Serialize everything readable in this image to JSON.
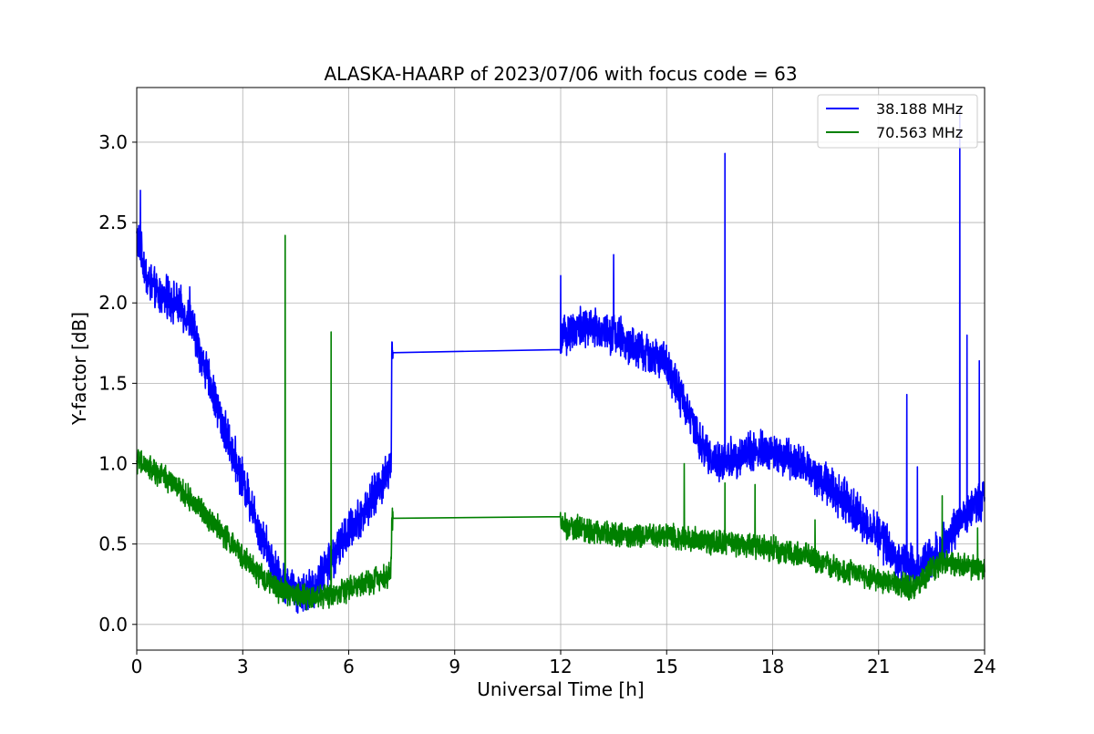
{
  "chart_data": {
    "type": "line",
    "title": "ALASKA-HAARP of 2023/07/06 with focus code = 63",
    "xlabel": "Universal Time [h]",
    "ylabel": "Y-factor [dB]",
    "xlim": [
      0,
      24
    ],
    "ylim": [
      -0.16,
      3.34
    ],
    "xticks": [
      0,
      3,
      6,
      9,
      12,
      15,
      18,
      21,
      24
    ],
    "xtick_labels": [
      "0",
      "3",
      "6",
      "9",
      "12",
      "15",
      "18",
      "21",
      "24"
    ],
    "yticks": [
      0.0,
      0.5,
      1.0,
      1.5,
      2.0,
      2.5,
      3.0
    ],
    "ytick_labels": [
      "0.0",
      "0.5",
      "1.0",
      "1.5",
      "2.0",
      "2.5",
      "3.0"
    ],
    "grid": true,
    "legend_position": "top-right",
    "series": [
      {
        "name": "38.188 MHz",
        "color": "#0000ff",
        "x": [
          0.0,
          0.3,
          0.6,
          1.0,
          1.5,
          2.0,
          2.5,
          3.0,
          3.5,
          4.0,
          4.5,
          5.0,
          5.5,
          6.0,
          6.5,
          7.0,
          7.2,
          7.22,
          12.0,
          12.01,
          12.5,
          13.0,
          13.5,
          14.0,
          14.5,
          15.0,
          15.5,
          16.0,
          16.5,
          17.0,
          17.5,
          18.0,
          18.5,
          19.0,
          19.5,
          20.0,
          20.5,
          21.0,
          21.5,
          22.0,
          22.5,
          23.0,
          23.5,
          24.0
        ],
        "y": [
          2.42,
          2.15,
          2.05,
          2.02,
          1.9,
          1.55,
          1.2,
          0.9,
          0.58,
          0.3,
          0.2,
          0.22,
          0.4,
          0.58,
          0.72,
          0.9,
          1.0,
          1.69,
          1.71,
          1.8,
          1.85,
          1.83,
          1.82,
          1.72,
          1.68,
          1.62,
          1.38,
          1.1,
          1.0,
          1.05,
          1.08,
          1.07,
          1.02,
          0.98,
          0.88,
          0.78,
          0.66,
          0.56,
          0.4,
          0.35,
          0.42,
          0.55,
          0.7,
          0.8
        ],
        "noise": 0.1,
        "spikes": [
          [
            0.1,
            2.7
          ],
          [
            1.5,
            2.1
          ],
          [
            12.0,
            2.17
          ],
          [
            13.5,
            2.3
          ],
          [
            16.65,
            2.93
          ],
          [
            21.8,
            1.43
          ],
          [
            22.1,
            0.98
          ],
          [
            23.3,
            3.2
          ],
          [
            23.5,
            1.8
          ],
          [
            23.85,
            1.64
          ]
        ]
      },
      {
        "name": "70.563 MHz",
        "color": "#008000",
        "x": [
          0.0,
          0.5,
          1.0,
          1.5,
          2.0,
          2.5,
          3.0,
          3.5,
          4.0,
          4.5,
          5.0,
          5.5,
          6.0,
          6.5,
          7.0,
          7.2,
          7.22,
          12.0,
          12.01,
          13.0,
          14.0,
          15.0,
          16.0,
          17.0,
          18.0,
          19.0,
          20.0,
          21.0,
          21.5,
          22.0,
          22.5,
          23.0,
          24.0
        ],
        "y": [
          1.02,
          0.95,
          0.88,
          0.78,
          0.68,
          0.55,
          0.42,
          0.3,
          0.22,
          0.18,
          0.17,
          0.18,
          0.22,
          0.26,
          0.3,
          0.32,
          0.66,
          0.67,
          0.62,
          0.58,
          0.55,
          0.56,
          0.52,
          0.5,
          0.47,
          0.42,
          0.33,
          0.28,
          0.25,
          0.22,
          0.35,
          0.38,
          0.35
        ],
        "noise": 0.06,
        "spikes": [
          [
            4.2,
            2.42
          ],
          [
            5.5,
            1.82
          ],
          [
            7.2,
            0.42
          ],
          [
            15.5,
            1.0
          ],
          [
            16.65,
            0.88
          ],
          [
            17.5,
            0.87
          ],
          [
            19.2,
            0.65
          ],
          [
            21.75,
            0.32
          ],
          [
            22.8,
            0.8
          ],
          [
            23.8,
            0.6
          ]
        ]
      }
    ]
  }
}
